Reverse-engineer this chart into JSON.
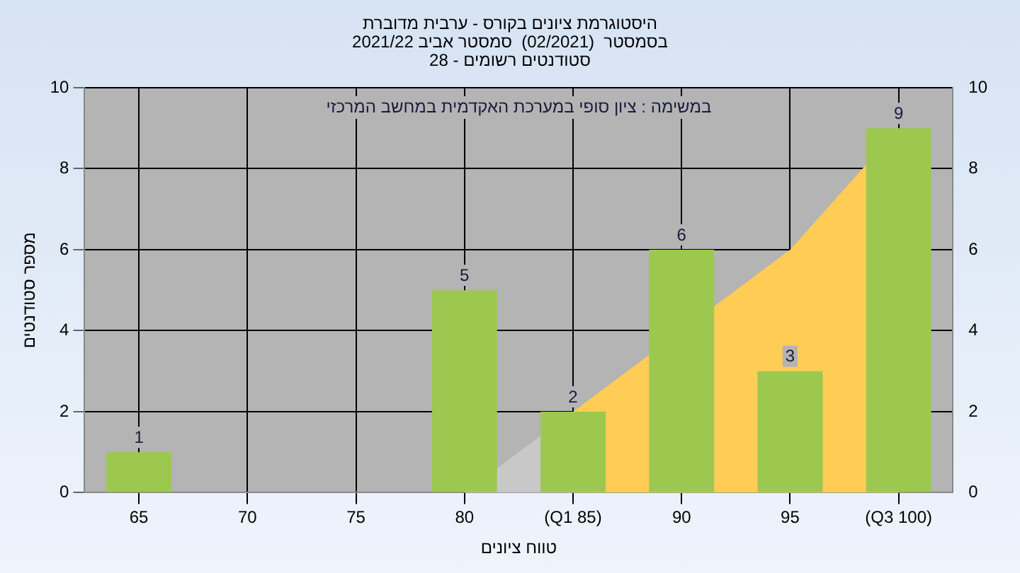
{
  "chart_data": {
    "type": "bar",
    "title": "היסטוגרמת ציונים בקורס - ערבית מדוברת",
    "subtitle": "בסמסטר  (02/2021)  סמסטר אביב 2021/22\nסטודנטים רשומים - 28",
    "annotations": [
      "במשימה : ציון סופי במערכת האקדמית במחשב המרכזי"
    ],
    "xlabel": "טווח ציונים",
    "ylabel": "מספר סטודנטים",
    "categories": [
      "65",
      "70",
      "75",
      "80",
      "(Q1 85)",
      "90",
      "95",
      "(Q3 100)"
    ],
    "series": [
      {
        "type": "area",
        "color": "#c8c8c8",
        "values": [
          null,
          null,
          null,
          0,
          2,
          null,
          null,
          null
        ]
      },
      {
        "type": "area",
        "color": "#ffcc55",
        "values": [
          null,
          null,
          null,
          null,
          2,
          null,
          6,
          9
        ]
      },
      {
        "type": "bar",
        "color": "#9cc850",
        "values": [
          1,
          0,
          0,
          5,
          2,
          6,
          3,
          9
        ],
        "value_labels": [
          "1",
          null,
          null,
          "5",
          "2",
          "6",
          "3",
          "9"
        ]
      }
    ],
    "ylim": [
      0,
      10
    ],
    "yticks": [
      0,
      2,
      4,
      6,
      8,
      10
    ],
    "y2lim": [
      0,
      10
    ],
    "y2ticks": [
      0,
      2,
      4,
      6,
      8,
      10
    ],
    "grid": true,
    "legend": false
  }
}
